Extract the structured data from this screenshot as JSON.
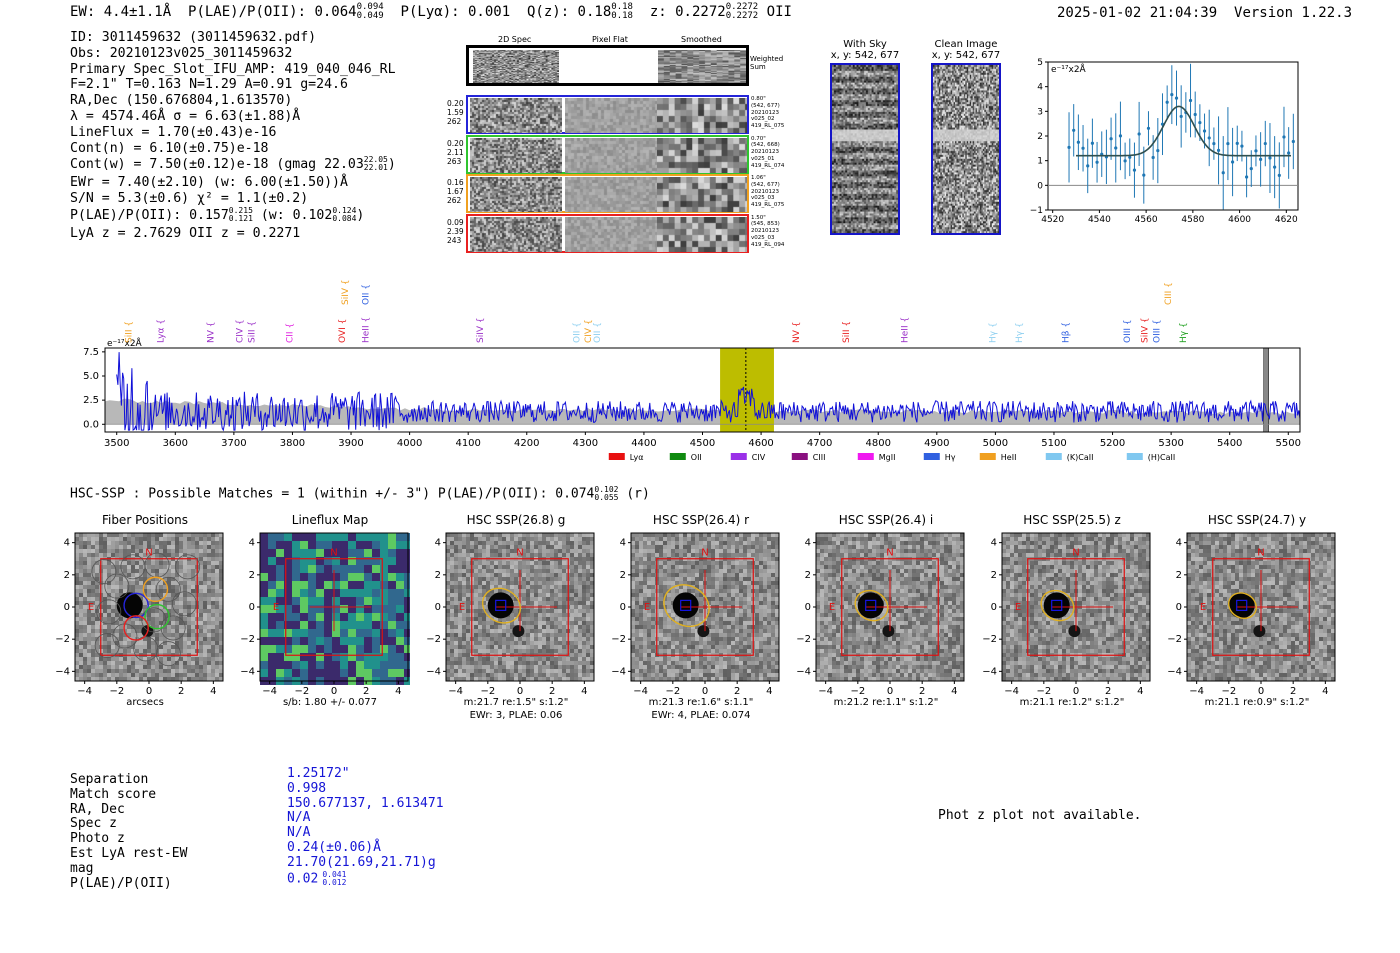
{
  "header": {
    "ew": "EW: 4.4±1.1Å",
    "plae_label": "P(LAE)/P(OII): 0.064",
    "plae_hi": "0.094",
    "plae_lo": "0.049",
    "plya": "P(Lyα): 0.001",
    "q_label": "Q(z): 0.18",
    "q_hi": "0.18",
    "q_lo": "0.18",
    "z_label": "z: 0.2272",
    "z_hi": "0.2272",
    "z_lo": "0.2272",
    "z_line": "OII",
    "timestamp": "2025-01-02 21:04:39",
    "version": "Version 1.22.3"
  },
  "info": {
    "id": "ID: 3011459632 (3011459632.pdf)",
    "obs": "Obs: 20210123v025_3011459632",
    "primary": "Primary Spec_Slot_IFU_AMP: 419_040_046_RL",
    "params": "F=2.1\"  T=0.163  N=1.29  A=0.91  g=24.6",
    "radec": "RA,Dec (150.676804,1.613570)",
    "lambda": "λ = 4574.46Å   σ = 6.63(±1.88)Å",
    "lineflux": "LineFlux = 1.70(±0.43)e-16",
    "contn": "Cont(n) = 6.10(±0.75)e-18",
    "contw": "Cont(w) = 7.50(±0.12)e-18 (gmag 22.03",
    "contw_hi": "22.05",
    "contw_lo": "22.01",
    "ewr": "EWr = 7.40(±2.10) (w: 6.00(±1.50))Å",
    "sn": "S/N = 5.3(±0.6)  χ² = 1.1(±0.2)",
    "plae": "P(LAE)/P(OII): 0.157",
    "plae_hi": "0.215",
    "plae_lo": "0.121",
    "plae_w": "(w: 0.102",
    "plae_w_hi": "0.124",
    "plae_w_lo": "0.084",
    "lyaz": "LyA z = 2.7629   OII z = 0.2271"
  },
  "cutouts": {
    "col1": "2D Spec",
    "col2": "Pixel Flat",
    "col3": "Smoothed",
    "weighted": "Weighted Sum",
    "rows": [
      {
        "left": [
          "0.20",
          "1.59",
          "262"
        ],
        "right": [
          "0.80\"",
          "(542, 677)",
          "20210123",
          "v025_02",
          "419_RL_075"
        ],
        "color": "#2424d8"
      },
      {
        "left": [
          "0.20",
          "2.11",
          "263"
        ],
        "right": [
          "0.70\"",
          "(542, 668)",
          "20210123",
          "v025_01",
          "419_RL_074"
        ],
        "color": "#2fc42f"
      },
      {
        "left": [
          "0.16",
          "1.67",
          "262"
        ],
        "right": [
          "1.06\"",
          "(542, 677)",
          "20210123",
          "v025_03",
          "419_RL_075"
        ],
        "color": "#f0a020"
      },
      {
        "left": [
          "0.09",
          "2.39",
          "243"
        ],
        "right": [
          "1.50\"",
          "(545, 853)",
          "20210123",
          "v025_03",
          "419_RL_094"
        ],
        "color": "#e82020"
      }
    ]
  },
  "sky": {
    "with_title": "With Sky",
    "clean_title": "Clean Image",
    "coords": "x, y: 542, 677"
  },
  "lineplot": {
    "unit": "e⁻¹⁷x2Å",
    "yticks": [
      "5",
      "4",
      "3",
      "2",
      "1",
      "0",
      "−1"
    ],
    "xticks": [
      "4520",
      "4540",
      "4560",
      "4580",
      "4600",
      "4620"
    ]
  },
  "spectrum": {
    "unit": "e⁻¹⁷x2Å",
    "yticks": [
      "7.5",
      "5.0",
      "2.5",
      "0.0"
    ],
    "xticks": [
      "3500",
      "3600",
      "3700",
      "3800",
      "3900",
      "4000",
      "4100",
      "4200",
      "4300",
      "4400",
      "4500",
      "4600",
      "4700",
      "4800",
      "4900",
      "5000",
      "5100",
      "5200",
      "5300",
      "5400",
      "5500"
    ],
    "lines": [
      {
        "name": "SiII",
        "wl": 3525,
        "color": "#f0a020",
        "row": 1
      },
      {
        "name": "Lyα",
        "wl": 3580,
        "color": "#9a30c8",
        "row": 1
      },
      {
        "name": "NV",
        "wl": 3665,
        "color": "#9a30c8",
        "row": 1
      },
      {
        "name": "CIV",
        "wl": 3715,
        "color": "#9a30c8",
        "row": 1
      },
      {
        "name": "SiII",
        "wl": 3735,
        "color": "#9a30c8",
        "row": 1
      },
      {
        "name": "CII",
        "wl": 3800,
        "color": "#e020e0",
        "row": 1
      },
      {
        "name": "SiIV",
        "wl": 3895,
        "color": "#f0a020",
        "row": 0
      },
      {
        "name": "OVI",
        "wl": 3890,
        "color": "#e82020",
        "row": 1
      },
      {
        "name": "OII",
        "wl": 3930,
        "color": "#3060e0",
        "row": 0
      },
      {
        "name": "HeII",
        "wl": 3930,
        "color": "#9a30c8",
        "row": 1
      },
      {
        "name": "SiIV",
        "wl": 4125,
        "color": "#9a30c8",
        "row": 1
      },
      {
        "name": "OII",
        "wl": 4290,
        "color": "#8fd0f0",
        "row": 1
      },
      {
        "name": "CIV",
        "wl": 4310,
        "color": "#f0a020",
        "row": 1
      },
      {
        "name": "OII",
        "wl": 4325,
        "color": "#8fd0f0",
        "row": 1
      },
      {
        "name": "NV",
        "wl": 4665,
        "color": "#e82020",
        "row": 1
      },
      {
        "name": "SiII",
        "wl": 4750,
        "color": "#e82020",
        "row": 1
      },
      {
        "name": "HeII",
        "wl": 4850,
        "color": "#9a30c8",
        "row": 1
      },
      {
        "name": "Hγ",
        "wl": 5000,
        "color": "#8fd0f0",
        "row": 1
      },
      {
        "name": "Hγ",
        "wl": 5045,
        "color": "#8fd0f0",
        "row": 1
      },
      {
        "name": "Hβ",
        "wl": 5125,
        "color": "#3060e0",
        "row": 1
      },
      {
        "name": "OIII",
        "wl": 5230,
        "color": "#3060e0",
        "row": 1
      },
      {
        "name": "SiIV",
        "wl": 5260,
        "color": "#e82020",
        "row": 1
      },
      {
        "name": "OIII",
        "wl": 5280,
        "color": "#3060e0",
        "row": 1
      },
      {
        "name": "CIII",
        "wl": 5300,
        "color": "#f0a020",
        "row": 0
      },
      {
        "name": "Hγ",
        "wl": 5325,
        "color": "#20a020",
        "row": 1
      }
    ],
    "legend": [
      {
        "label": "Lyα",
        "color": "#e81010"
      },
      {
        "label": "OII",
        "color": "#0f8a0f"
      },
      {
        "label": "CIV",
        "color": "#9a30e8"
      },
      {
        "label": "CIII",
        "color": "#8a1080"
      },
      {
        "label": "MgII",
        "color": "#f018f0"
      },
      {
        "label": "Hγ",
        "color": "#3060e0"
      },
      {
        "label": "HeII",
        "color": "#f0a020"
      },
      {
        "label": "(K)CaII",
        "color": "#80c8f0"
      },
      {
        "label": "(H)CaII",
        "color": "#80c8f0"
      }
    ]
  },
  "hsc": {
    "summary": "HSC-SSP : Possible Matches = 1 (within +/- 3\")  P(LAE)/P(OII): 0.074",
    "summary_hi": "0.102",
    "summary_lo": "0.055",
    "summary_band": "(r)",
    "panels": [
      {
        "title": "Fiber Positions",
        "sub1": "arcsecs",
        "sub2": ""
      },
      {
        "title": "Lineflux Map",
        "sub1": "s/b: 1.80 +/- 0.077",
        "sub2": ""
      },
      {
        "title": "HSC SSP(26.8) g",
        "sub1": "m:21.7  re:1.5\"  s:1.2\"",
        "sub2": "EWr: 3, PLAE: 0.06"
      },
      {
        "title": "HSC SSP(26.4) r",
        "sub1": "m:21.3  re:1.6\"  s:1.1\"",
        "sub2": "EWr: 4, PLAE: 0.074"
      },
      {
        "title": "HSC SSP(26.4) i",
        "sub1": "m:21.2  re:1.1\"  s:1.2\"",
        "sub2": ""
      },
      {
        "title": "HSC SSP(25.5) z",
        "sub1": "m:21.1  re:1.2\"  s:1.2\"",
        "sub2": ""
      },
      {
        "title": "HSC SSP(24.7) y",
        "sub1": "m:21.1  re:0.9\"  s:1.2\"",
        "sub2": ""
      }
    ],
    "ticks": [
      "4",
      "2",
      "0",
      "−2",
      "−4"
    ],
    "xticks": [
      "−4",
      "−2",
      "0",
      "2",
      "4"
    ],
    "north": "N",
    "east": "E"
  },
  "match": {
    "labels": [
      "Separation",
      "Match score",
      "RA, Dec",
      "Spec z",
      "Photo z",
      "Est LyA rest-EW",
      "mag",
      "P(LAE)/P(OII)"
    ],
    "values": [
      "1.25172\"",
      "0.998",
      "150.677137, 1.613471",
      "N/A",
      "N/A",
      "0.24(±0.06)Å",
      "21.70(21.69,21.71)g",
      "0.02"
    ],
    "plae_hi": "0.041",
    "plae_lo": "0.012",
    "photz_note": "Phot z plot not available."
  }
}
